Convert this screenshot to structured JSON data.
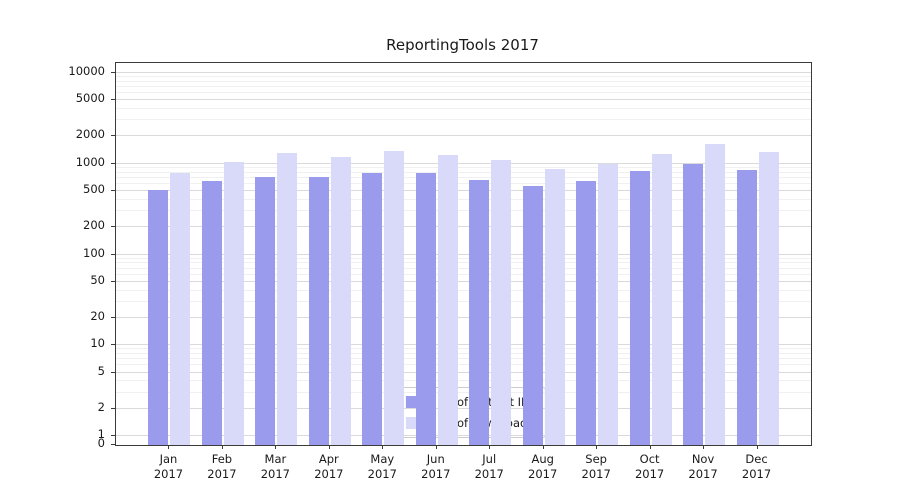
{
  "chart_data": {
    "type": "bar",
    "title": "ReportingTools 2017",
    "year_label": "2017",
    "categories": [
      "Jan",
      "Feb",
      "Mar",
      "Apr",
      "May",
      "Jun",
      "Jul",
      "Aug",
      "Sep",
      "Oct",
      "Nov",
      "Dec"
    ],
    "series": [
      {
        "name": "Nb of distinct IPs",
        "color": "#9b9bee",
        "values": [
          520,
          650,
          720,
          720,
          800,
          800,
          670,
          570,
          650,
          840,
          1000,
          860
        ]
      },
      {
        "name": "Nb of downloads",
        "color": "#d9d9f9",
        "values": [
          800,
          1050,
          1300,
          1200,
          1400,
          1250,
          1100,
          870,
          1000,
          1280,
          1650,
          1350
        ]
      }
    ],
    "yscale": "log",
    "yticks": [
      0,
      1,
      2,
      5,
      10,
      20,
      50,
      100,
      200,
      500,
      1000,
      2000,
      5000,
      10000
    ],
    "ylim": [
      0,
      10000
    ],
    "grid": true,
    "legend_position": "lower center"
  },
  "colors": {
    "axis": "#3a3a3a",
    "grid_major": "#dadada",
    "grid_minor": "#f0f0f0",
    "background": "#ffffff"
  }
}
